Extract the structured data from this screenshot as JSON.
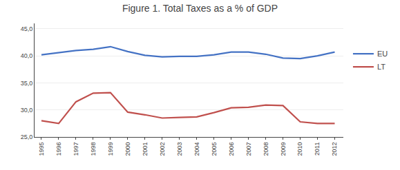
{
  "chart_data": {
    "type": "line",
    "title": "Figure 1. Total Taxes as a % of GDP",
    "x": [
      1995,
      1996,
      1997,
      1998,
      1999,
      2000,
      2001,
      2002,
      2003,
      2004,
      2005,
      2006,
      2007,
      2008,
      2009,
      2010,
      2011,
      2012
    ],
    "series": [
      {
        "name": "EU",
        "color": "#4472C4",
        "values": [
          40.2,
          40.6,
          41.0,
          41.2,
          41.7,
          40.8,
          40.1,
          39.8,
          39.9,
          39.9,
          40.2,
          40.7,
          40.7,
          40.3,
          39.6,
          39.5,
          40.0,
          40.7
        ]
      },
      {
        "name": "LT",
        "color": "#C0504D",
        "values": [
          28.0,
          27.5,
          31.5,
          33.1,
          33.2,
          29.6,
          29.1,
          28.5,
          28.6,
          28.7,
          29.5,
          30.4,
          30.5,
          30.9,
          30.8,
          27.8,
          27.5,
          27.5
        ]
      }
    ],
    "xlim": [
      1994.6,
      2012.5
    ],
    "xticks": [
      1995,
      1996,
      1997,
      1998,
      1999,
      2000,
      2001,
      2002,
      2003,
      2004,
      2005,
      2006,
      2007,
      2008,
      2009,
      2010,
      2011,
      2012
    ],
    "ylim": [
      25.0,
      46.0
    ],
    "yticks": [
      {
        "value": 25.0,
        "label": "25,0"
      },
      {
        "value": 30.0,
        "label": "30,0"
      },
      {
        "value": 35.0,
        "label": "35,0"
      },
      {
        "value": 40.0,
        "label": "40,0"
      },
      {
        "value": 45.0,
        "label": "45,0"
      }
    ],
    "grid": "y",
    "legend": "right"
  }
}
